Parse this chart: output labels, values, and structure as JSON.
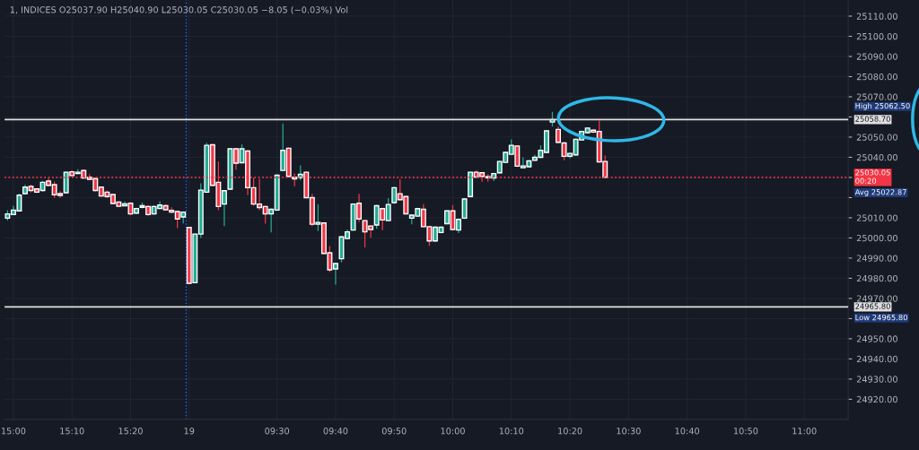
{
  "chart_data": {
    "type": "candlestick",
    "title": "1, INDICES O25037.90 H25040.90 L25030.05 C25030.05 −8.05 (−0.03%) Vol",
    "categories": [
      null,
      "15:00",
      null,
      null,
      null,
      null,
      null,
      null,
      null,
      null,
      null,
      "15:10",
      null,
      null,
      null,
      null,
      null,
      null,
      null,
      null,
      null,
      "15:20",
      null,
      null,
      null,
      null,
      null,
      null,
      null,
      null,
      null,
      "19",
      null,
      null,
      null,
      null,
      null,
      null,
      null,
      null,
      null,
      null,
      null,
      null,
      null,
      null,
      "09:30",
      null,
      null,
      null,
      null,
      null,
      null,
      null,
      null,
      null,
      "09:40",
      null,
      null,
      null,
      null,
      null,
      null,
      null,
      null,
      null,
      "09:50",
      null,
      null,
      null,
      null,
      null,
      null,
      null,
      null,
      null,
      "10:00",
      null,
      null,
      null,
      null,
      null,
      null,
      null,
      null,
      null,
      "10:10",
      null,
      null,
      null,
      null,
      null,
      null,
      null,
      null,
      null,
      "10:20",
      null,
      null,
      null,
      null,
      null,
      null,
      null,
      null,
      null,
      "10:30",
      null,
      null,
      null,
      null,
      null,
      null,
      null,
      null,
      null,
      "10:40",
      null,
      null,
      null,
      null,
      null,
      null,
      null,
      null,
      null,
      "10:50",
      null,
      null,
      null,
      null,
      null,
      null,
      null,
      null,
      null,
      "11:00",
      null,
      null,
      null,
      null,
      null,
      null,
      null
    ],
    "ohlc": [
      [
        25009.8,
        25013.8,
        25008.6,
        25011.9
      ],
      [
        25011.6,
        25016.0,
        25011.6,
        25013.8
      ],
      [
        25013.4,
        25022.0,
        25013.1,
        25021.2
      ],
      [
        25022.0,
        25026.4,
        25021.7,
        25025.2
      ],
      [
        25025.5,
        25026.4,
        25022.6,
        25023.5
      ],
      [
        25024.3,
        25024.8,
        25022.3,
        25022.7
      ],
      [
        25023.5,
        25028.3,
        25023.0,
        25027.6
      ],
      [
        25028.2,
        25029.7,
        25025.5,
        25026.1
      ],
      [
        25026.4,
        25027.9,
        25019.9,
        25021.4
      ],
      [
        25022.0,
        25023.2,
        25019.9,
        25021.1
      ],
      [
        25022.4,
        25033.0,
        25022.0,
        25032.6
      ],
      [
        25032.8,
        25033.5,
        25030.6,
        25030.9
      ],
      [
        25031.9,
        25034.1,
        25031.6,
        25032.6
      ],
      [
        25033.4,
        25034.1,
        25029.3,
        25029.7
      ],
      [
        25030.1,
        25031.6,
        25028.9,
        25029.1
      ],
      [
        25029.4,
        25029.8,
        25023.0,
        25023.5
      ],
      [
        25025.2,
        25025.5,
        25020.5,
        25020.8
      ],
      [
        25022.7,
        25023.5,
        25019.7,
        25020.5
      ],
      [
        25021.5,
        25022.0,
        25016.7,
        25017.1
      ],
      [
        25017.8,
        25018.2,
        25015.3,
        25015.7
      ],
      [
        25016.0,
        25018.1,
        25015.7,
        25016.9
      ],
      [
        25017.2,
        25017.6,
        25011.3,
        25011.9
      ],
      [
        25012.3,
        25015.0,
        25011.9,
        25014.6
      ],
      [
        25015.2,
        25017.5,
        25014.6,
        25016.0
      ],
      [
        25015.6,
        25016.3,
        25011.0,
        25011.6
      ],
      [
        25011.9,
        25016.2,
        25011.5,
        25015.6
      ],
      [
        25014.6,
        25018.1,
        25014.3,
        25016.3
      ],
      [
        25016.0,
        25016.8,
        25013.7,
        25014.0
      ],
      [
        25013.7,
        25015.2,
        25012.2,
        25012.8
      ],
      [
        25013.1,
        25013.5,
        25004.9,
        25009.4
      ],
      [
        25010.4,
        25013.2,
        25007.2,
        25012.8
      ],
      [
        25005.2,
        25005.5,
        24977.2,
        24977.5
      ],
      [
        24977.8,
        25002.3,
        24977.5,
        25001.9
      ],
      [
        25001.9,
        25027.1,
        25000.0,
        25023.7
      ],
      [
        25022.7,
        25047.1,
        25022.3,
        25045.9
      ],
      [
        25046.2,
        25046.5,
        25025.8,
        25026.1
      ],
      [
        25027.6,
        25037.9,
        25013.8,
        25015.6
      ],
      [
        25016.8,
        25023.8,
        25005.9,
        25023.4
      ],
      [
        25024.2,
        25044.6,
        25023.8,
        25044.2
      ],
      [
        25044.2,
        25044.6,
        25033.8,
        25037.1
      ],
      [
        25037.3,
        25046.4,
        25037.0,
        25044.2
      ],
      [
        25043.1,
        25043.5,
        25021.2,
        25024.9
      ],
      [
        25024.9,
        25029.9,
        25016.0,
        25016.8
      ],
      [
        25016.8,
        25029.3,
        25013.8,
        25015.1
      ],
      [
        25015.6,
        25016.0,
        25007.1,
        25011.9
      ],
      [
        25011.9,
        25014.6,
        25002.7,
        25014.2
      ],
      [
        25013.8,
        25031.5,
        25013.4,
        25031.1
      ],
      [
        25033.5,
        25056.8,
        25033.0,
        25043.4
      ],
      [
        25044.5,
        25044.9,
        25030.0,
        25030.5
      ],
      [
        25030.1,
        25032.0,
        25025.6,
        25029.3
      ],
      [
        25029.8,
        25036.0,
        25028.6,
        25031.6
      ],
      [
        25032.6,
        25033.0,
        25019.6,
        25020.0
      ],
      [
        25020.0,
        25021.9,
        25005.9,
        25006.8
      ],
      [
        25006.8,
        25016.8,
        25003.4,
        25007.7
      ],
      [
        25007.4,
        25007.8,
        24992.0,
        24992.3
      ],
      [
        24992.6,
        24996.0,
        24983.1,
        24984.2
      ],
      [
        24984.6,
        24987.7,
        24976.8,
        24987.3
      ],
      [
        24989.7,
        25001.0,
        24987.9,
        25000.5
      ],
      [
        24999.7,
        25004.2,
        24999.3,
        25003.0
      ],
      [
        25003.9,
        25017.2,
        25003.5,
        25016.8
      ],
      [
        25017.2,
        25021.9,
        25007.9,
        25009.4
      ],
      [
        25008.6,
        25009.0,
        24995.3,
        25003.0
      ],
      [
        25005.9,
        25006.3,
        25000.1,
        25004.2
      ],
      [
        25006.4,
        25016.4,
        25004.5,
        25016.0
      ],
      [
        25014.5,
        25015.0,
        25003.9,
        25008.9
      ],
      [
        25008.6,
        25019.7,
        25008.2,
        25016.6
      ],
      [
        25017.5,
        25025.3,
        25017.0,
        25024.9
      ],
      [
        25021.9,
        25029.1,
        25018.6,
        25019.0
      ],
      [
        25020.5,
        25020.9,
        25011.6,
        25012.0
      ],
      [
        25009.8,
        25011.7,
        25006.8,
        25011.3
      ],
      [
        25010.8,
        25015.0,
        25010.4,
        25014.5
      ],
      [
        25014.2,
        25016.8,
        25005.2,
        25005.6
      ],
      [
        25005.6,
        25006.0,
        24996.0,
        24998.5
      ],
      [
        24998.5,
        25005.7,
        24998.0,
        25005.3
      ],
      [
        25002.7,
        25005.7,
        25002.3,
        25005.3
      ],
      [
        25007.1,
        25013.8,
        25006.7,
        25013.4
      ],
      [
        25013.4,
        25016.3,
        25003.8,
        25004.2
      ],
      [
        25003.9,
        25009.6,
        25002.4,
        25009.2
      ],
      [
        25009.8,
        25019.7,
        25009.4,
        25019.3
      ],
      [
        25020.5,
        25033.0,
        25020.1,
        25032.6
      ],
      [
        25032.6,
        25033.5,
        25029.8,
        25030.2
      ],
      [
        25032.3,
        25032.7,
        25027.9,
        25030.5
      ],
      [
        25030.4,
        25031.6,
        25027.9,
        25029.8
      ],
      [
        25029.7,
        25032.3,
        25028.2,
        25031.9
      ],
      [
        25032.3,
        25038.3,
        25031.9,
        25037.9
      ],
      [
        25037.5,
        25042.8,
        25037.1,
        25042.4
      ],
      [
        25041.5,
        25048.9,
        25041.1,
        25045.9
      ],
      [
        25045.6,
        25046.0,
        25035.2,
        25035.6
      ],
      [
        25034.8,
        25040.0,
        25034.4,
        25035.7
      ],
      [
        25035.3,
        25038.6,
        25034.9,
        25038.2
      ],
      [
        25038.5,
        25041.2,
        25038.1,
        25040.0
      ],
      [
        25040.0,
        25045.9,
        25039.6,
        25043.4
      ],
      [
        25042.4,
        25053.5,
        25042.0,
        25053.1
      ],
      [
        25057.5,
        25062.5,
        25055.3,
        25058.7
      ],
      [
        25053.8,
        25055.3,
        25047.0,
        25047.4
      ],
      [
        25047.1,
        25047.5,
        25038.5,
        25040.5
      ],
      [
        25040.5,
        25042.3,
        25039.4,
        25041.9
      ],
      [
        25041.2,
        25049.3,
        25040.8,
        25048.9
      ],
      [
        25048.6,
        25053.2,
        25048.2,
        25052.8
      ],
      [
        25052.2,
        25054.9,
        25051.8,
        25054.5
      ],
      [
        25053.4,
        25053.8,
        25052.0,
        25052.5
      ],
      [
        25052.8,
        25058.2,
        25037.3,
        25037.7
      ],
      [
        25037.9,
        25040.9,
        25030.05,
        25030.05
      ],
      null,
      null,
      null,
      null,
      null,
      null,
      null,
      null,
      null,
      null,
      null,
      null,
      null,
      null,
      null,
      null,
      null,
      null,
      null,
      null,
      null,
      null,
      null,
      null,
      null,
      null,
      null,
      null,
      null,
      null,
      null,
      null,
      null,
      null,
      null,
      null,
      null,
      null,
      null,
      null,
      null
    ],
    "ylim": [
      24910,
      25118
    ],
    "yticks": [
      {
        "value": 24920,
        "label": "24920.00"
      },
      {
        "value": 24930,
        "label": "24930.00"
      },
      {
        "value": 24940,
        "label": "24940.00"
      },
      {
        "value": 24950,
        "label": "24950.00"
      },
      {
        "value": 24960,
        "label": null
      },
      {
        "value": 24970,
        "label": "24970.00"
      },
      {
        "value": 24980,
        "label": "24980.00"
      },
      {
        "value": 24990,
        "label": "24990.00"
      },
      {
        "value": 25000,
        "label": "25000.00"
      },
      {
        "value": 25010,
        "label": "25010.00"
      },
      {
        "value": 25020,
        "label": null
      },
      {
        "value": 25030,
        "label": null
      },
      {
        "value": 25040,
        "label": "25040.00"
      },
      {
        "value": 25050,
        "label": "25050.00"
      },
      {
        "value": 25060,
        "label": null
      },
      {
        "value": 25070,
        "label": "25070.00"
      },
      {
        "value": 25080,
        "label": "25080.00"
      },
      {
        "value": 25090,
        "label": "25090.00"
      },
      {
        "value": 25100,
        "label": "25100.00"
      },
      {
        "value": 25110,
        "label": "25110.00"
      }
    ],
    "grid": true,
    "ref_lines": [
      {
        "axis": "y",
        "value": 25058.7,
        "label": "25058.70",
        "color": "#e0e0e0",
        "line_style": "solid"
      },
      {
        "axis": "y",
        "value": 24965.8,
        "label": "24965.80",
        "color": "#e0e0e0",
        "line_style": "solid"
      },
      {
        "axis": "y",
        "value": 25030.05,
        "label": "25030.05\n00:20",
        "color": "#f23645",
        "line_style": "dotted"
      },
      {
        "axis": "x",
        "value": "19",
        "label": null,
        "color": "#2962ff",
        "line_style": "dotted"
      }
    ],
    "annotations": [
      "High 25062.50",
      "Avg 25022.87",
      "Low 24965.80"
    ]
  }
}
